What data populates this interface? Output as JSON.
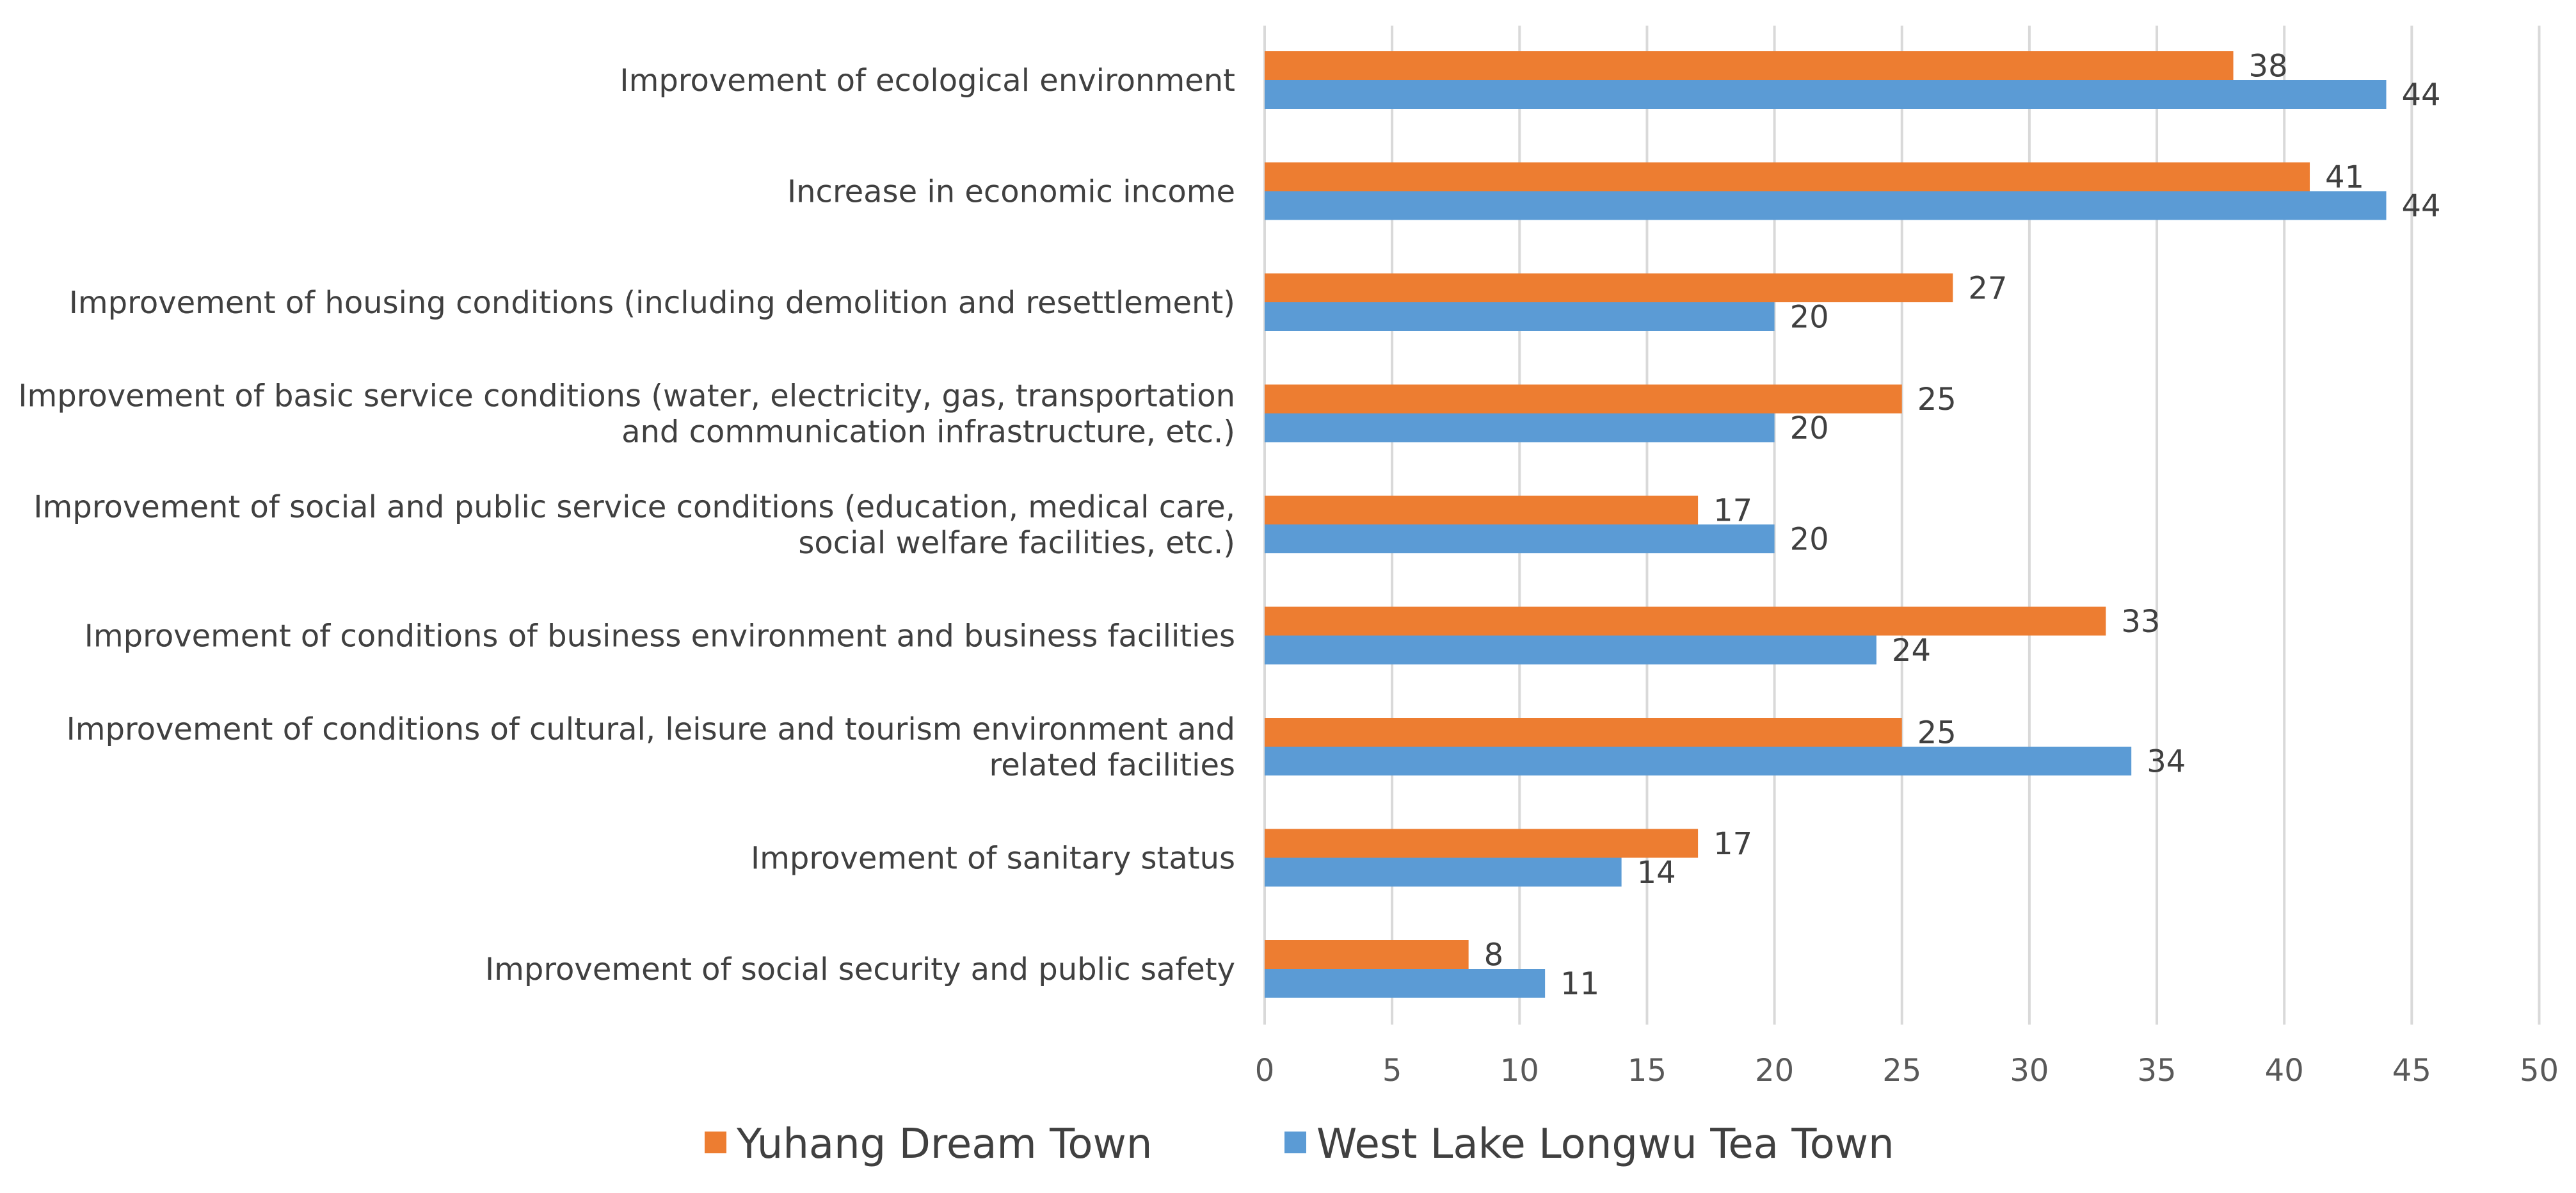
{
  "chart_data": {
    "type": "bar",
    "orientation": "horizontal",
    "categories": [
      "Improvement of ecological environment",
      "Increase in economic income",
      "Improvement of housing conditions (including demolition and resettlement)",
      "Improvement of basic service conditions (water, electricity, gas, transportation and communication infrastructure, etc.)",
      "Improvement of social and public service conditions (education, medical care, social welfare facilities, etc.)",
      "Improvement of conditions of business environment and business facilities",
      "Improvement of conditions of cultural, leisure and tourism environment and related facilities",
      "Improvement of sanitary status",
      "Improvement of social security and public safety"
    ],
    "category_lines": [
      [
        "Improvement of ecological environment"
      ],
      [
        "Increase in economic income"
      ],
      [
        "Improvement of housing conditions (including demolition and resettlement)"
      ],
      [
        "Improvement of basic service conditions (water, electricity, gas, transportation",
        "and communication infrastructure, etc.)"
      ],
      [
        "Improvement of social and public service conditions (education, medical care,",
        "social welfare facilities, etc.)"
      ],
      [
        "Improvement of conditions of business environment and business facilities"
      ],
      [
        "Improvement of conditions of cultural, leisure and tourism environment and",
        "related facilities"
      ],
      [
        "Improvement of sanitary status"
      ],
      [
        "Improvement of social security and public safety"
      ]
    ],
    "series": [
      {
        "name": "Yuhang Dream Town",
        "color": "#ed7d31",
        "values": [
          38,
          41,
          27,
          25,
          17,
          33,
          25,
          17,
          8
        ]
      },
      {
        "name": "West Lake Longwu Tea Town",
        "color": "#5b9bd5",
        "values": [
          44,
          44,
          20,
          20,
          20,
          24,
          34,
          14,
          11
        ]
      }
    ],
    "xlim": [
      0,
      50
    ],
    "xticks": [
      0,
      5,
      10,
      15,
      20,
      25,
      30,
      35,
      40,
      45,
      50
    ],
    "grid": true,
    "data_labels": true,
    "legend_position": "bottom",
    "title": "",
    "xlabel": "",
    "ylabel": ""
  }
}
